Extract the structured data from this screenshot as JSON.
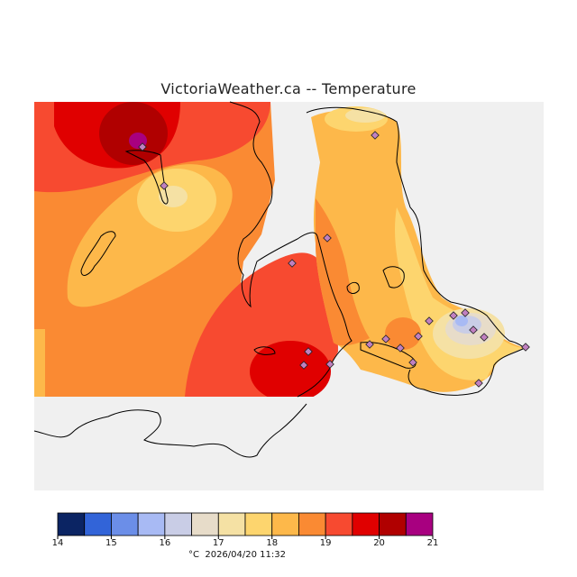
{
  "title": "VictoriaWeather.ca -- Temperature",
  "footer": {
    "unit": "°C",
    "timestamp": "2026/04/20 11:32"
  },
  "legend": {
    "ticks": [
      "14",
      "15",
      "16",
      "17",
      "18",
      "19",
      "20",
      "21"
    ],
    "colors": [
      "#0b2463",
      "#3264d8",
      "#6b8ee8",
      "#a8baf4",
      "#c9cde6",
      "#e7dcc9",
      "#f5e1a4",
      "#fdd56e",
      "#fdb84a",
      "#fa8a33",
      "#f74a30",
      "#e00000",
      "#b00000",
      "#a80080"
    ]
  },
  "colors": {
    "water": "#f0f0f0",
    "nodata": "#ffffff",
    "station_fill": "#c080c0"
  }
}
